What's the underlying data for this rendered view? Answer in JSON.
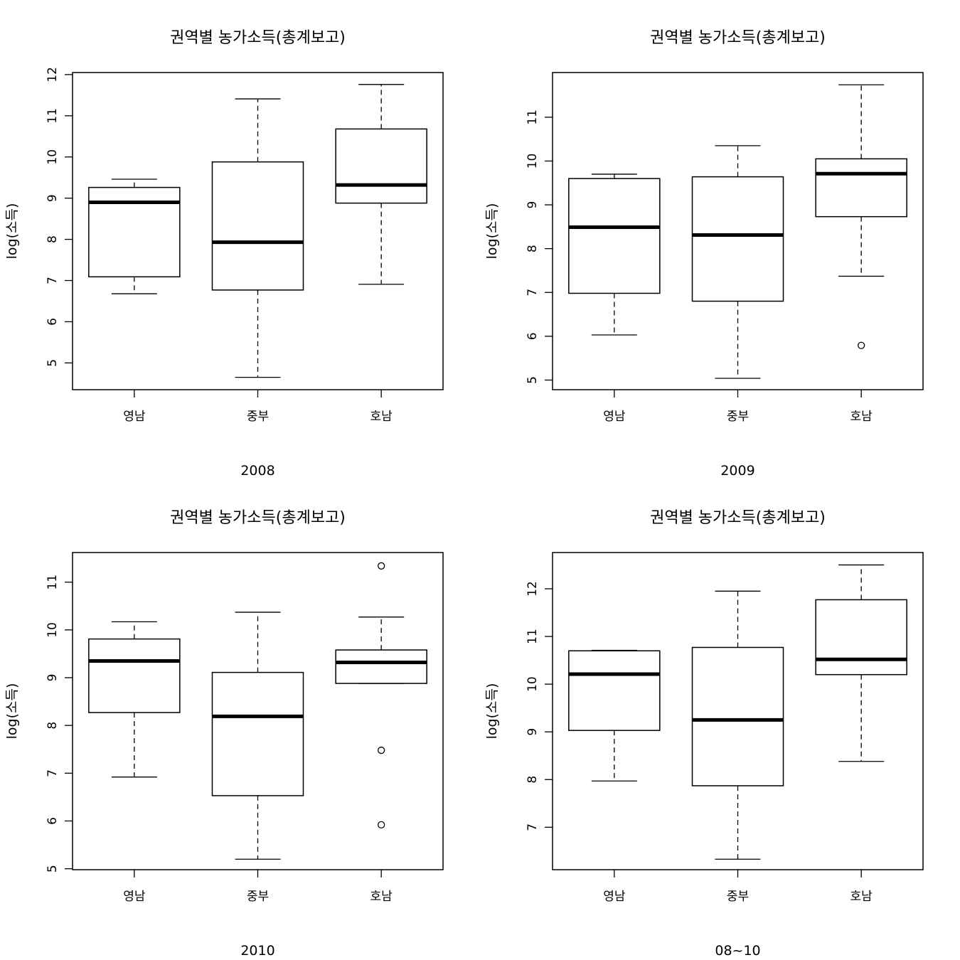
{
  "chart_data": [
    {
      "type": "boxplot",
      "title": "권역별 농가소득(총계보고)",
      "xlabel": "2008",
      "ylabel": "log(소득)",
      "categories": [
        "영남",
        "중부",
        "호남"
      ],
      "ylim": [
        4.35,
        12.05
      ],
      "yticks": [
        5,
        6,
        7,
        8,
        9,
        10,
        11,
        12
      ],
      "ytick_labels": [
        "5",
        "6",
        "7",
        "8",
        "9",
        "10",
        "11",
        "12"
      ],
      "boxes": [
        {
          "category": "영남",
          "whisker_low": 6.68,
          "q1": 7.09,
          "median": 8.9,
          "q3": 9.26,
          "whisker_high": 9.46,
          "outliers": []
        },
        {
          "category": "중부",
          "whisker_low": 4.65,
          "q1": 6.77,
          "median": 7.93,
          "q3": 9.88,
          "whisker_high": 11.41,
          "outliers": []
        },
        {
          "category": "호남",
          "whisker_low": 6.91,
          "q1": 8.88,
          "median": 9.32,
          "q3": 10.68,
          "whisker_high": 11.76,
          "outliers": []
        }
      ]
    },
    {
      "type": "boxplot",
      "title": "권역별 농가소득(총계보고)",
      "xlabel": "2009",
      "ylabel": "log(소득)",
      "categories": [
        "영남",
        "중부",
        "호남"
      ],
      "ylim": [
        4.78,
        12.02
      ],
      "yticks": [
        5,
        6,
        7,
        8,
        9,
        10,
        11
      ],
      "ytick_labels": [
        "5",
        "6",
        "7",
        "8",
        "9",
        "10",
        "11"
      ],
      "boxes": [
        {
          "category": "영남",
          "whisker_low": 6.03,
          "q1": 6.98,
          "median": 8.49,
          "q3": 9.6,
          "whisker_high": 9.7,
          "outliers": []
        },
        {
          "category": "중부",
          "whisker_low": 5.04,
          "q1": 6.8,
          "median": 8.31,
          "q3": 9.64,
          "whisker_high": 10.35,
          "outliers": []
        },
        {
          "category": "호남",
          "whisker_low": 7.37,
          "q1": 8.73,
          "median": 9.71,
          "q3": 10.05,
          "whisker_high": 11.74,
          "outliers": [
            5.79
          ]
        }
      ]
    },
    {
      "type": "boxplot",
      "title": "권역별 농가소득(총계보고)",
      "xlabel": "2010",
      "ylabel": "log(소득)",
      "categories": [
        "영남",
        "중부",
        "호남"
      ],
      "ylim": [
        4.98,
        11.62
      ],
      "yticks": [
        5,
        6,
        7,
        8,
        9,
        10,
        11
      ],
      "ytick_labels": [
        "5",
        "6",
        "7",
        "8",
        "9",
        "10",
        "11"
      ],
      "boxes": [
        {
          "category": "영남",
          "whisker_low": 6.92,
          "q1": 8.27,
          "median": 9.35,
          "q3": 9.81,
          "whisker_high": 10.17,
          "outliers": []
        },
        {
          "category": "중부",
          "whisker_low": 5.2,
          "q1": 6.53,
          "median": 8.19,
          "q3": 9.11,
          "whisker_high": 10.37,
          "outliers": []
        },
        {
          "category": "호남",
          "whisker_low": 8.88,
          "q1": 8.88,
          "median": 9.32,
          "q3": 9.58,
          "whisker_high": 10.27,
          "outliers": [
            11.34,
            7.48,
            5.92
          ]
        }
      ]
    },
    {
      "type": "boxplot",
      "title": "권역별 농가소득(총계보고)",
      "xlabel": "08~10",
      "ylabel": "log(소득)",
      "categories": [
        "영남",
        "중부",
        "호남"
      ],
      "ylim": [
        6.11,
        12.76
      ],
      "yticks": [
        7,
        8,
        9,
        10,
        11,
        12
      ],
      "ytick_labels": [
        "7",
        "8",
        "9",
        "10",
        "11",
        "12"
      ],
      "boxes": [
        {
          "category": "영남",
          "whisker_low": 7.97,
          "q1": 9.03,
          "median": 10.21,
          "q3": 10.7,
          "whisker_high": 10.71,
          "outliers": []
        },
        {
          "category": "중부",
          "whisker_low": 6.33,
          "q1": 7.87,
          "median": 9.25,
          "q3": 10.77,
          "whisker_high": 11.95,
          "outliers": []
        },
        {
          "category": "호남",
          "whisker_low": 8.38,
          "q1": 10.2,
          "median": 10.52,
          "q3": 11.77,
          "whisker_high": 12.5,
          "outliers": []
        }
      ]
    }
  ]
}
